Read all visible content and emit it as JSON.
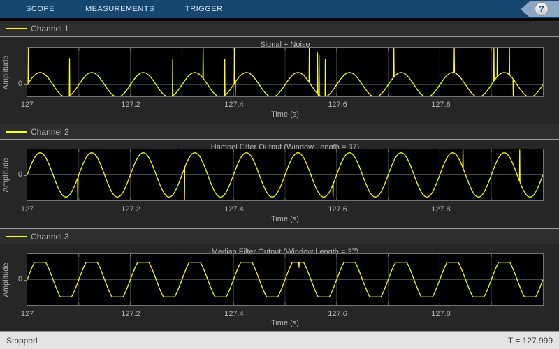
{
  "toolbar": {
    "tabs": [
      {
        "label": "SCOPE"
      },
      {
        "label": "MEASUREMENTS"
      },
      {
        "label": "TRIGGER"
      }
    ],
    "help_label": "?"
  },
  "channels": [
    {
      "label": "Channel 1"
    },
    {
      "label": "Channel 2"
    },
    {
      "label": "Channel 3"
    }
  ],
  "status": {
    "state": "Stopped",
    "time_display": "T = 127.999"
  },
  "colors": {
    "signal": "#ffff00",
    "toolbar_bg": "#16476f",
    "plot_bg": "#000000",
    "grid_major": "#454545",
    "grid_minor": "#303030",
    "tick_notch": "#757575",
    "axis_text": "#b4b4b4"
  },
  "chart_data": [
    {
      "type": "line",
      "title": "Signal + Noise",
      "xlabel": "Time (s)",
      "ylabel": "Amplitude",
      "xlim": [
        127,
        128
      ],
      "ylim": [
        -0.95,
        3.0
      ],
      "xticks": [
        127,
        127.2,
        127.4,
        127.6,
        127.8
      ],
      "xtick_labels": [
        "127",
        "127.2",
        "127.4",
        "127.6",
        "127.8"
      ],
      "ytick_value": 0,
      "ytick_label": "0",
      "grid_interval": 0.1,
      "signal": {
        "kind": "sine",
        "frequency_hz": 10,
        "amplitude": 1,
        "clip_level": null
      },
      "spikes": [
        [
          127.002,
          3.8
        ],
        [
          127.082,
          2.15
        ],
        [
          127.282,
          2.05
        ],
        [
          127.341,
          4.0
        ],
        [
          127.383,
          2.1
        ],
        [
          127.402,
          4.2
        ],
        [
          127.4035,
          -1.2
        ],
        [
          127.547,
          4.0
        ],
        [
          127.563,
          2.6
        ],
        [
          127.5645,
          -1.3
        ],
        [
          127.566,
          2.4
        ],
        [
          127.578,
          2.1
        ],
        [
          127.711,
          4.2
        ],
        [
          127.828,
          4.0
        ],
        [
          127.905,
          4.1
        ],
        [
          127.9115,
          3.9
        ],
        [
          127.935,
          4.3
        ],
        [
          127.9425,
          -1.5
        ]
      ]
    },
    {
      "type": "line",
      "title": "Hampel Filter Output (Window Length = 37)",
      "xlabel": "Time (s)",
      "ylabel": "Amplitude",
      "xlim": [
        127,
        128
      ],
      "ylim": [
        -1.15,
        1.15
      ],
      "xticks": [
        127,
        127.2,
        127.4,
        127.6,
        127.8
      ],
      "xtick_labels": [
        "127",
        "127.2",
        "127.4",
        "127.6",
        "127.8"
      ],
      "ytick_value": 0,
      "ytick_label": "0",
      "grid_interval": 0.1,
      "signal": {
        "kind": "sine",
        "frequency_hz": 10,
        "amplitude": 1,
        "clip_level": null
      },
      "spikes": [
        [
          127.098,
          -1.13
        ],
        [
          127.305,
          -1.1
        ],
        [
          127.593,
          -1.0
        ],
        [
          127.845,
          1.13
        ],
        [
          127.955,
          1.12
        ]
      ]
    },
    {
      "type": "line",
      "title": "Median Filter Output (Window Length = 37)",
      "xlabel": "Time (s)",
      "ylabel": "Amplitude",
      "xlim": [
        127,
        128
      ],
      "ylim": [
        -1.15,
        1.15
      ],
      "xticks": [
        127,
        127.2,
        127.4,
        127.6,
        127.8
      ],
      "xtick_labels": [
        "127",
        "127.2",
        "127.4",
        "127.6",
        "127.8"
      ],
      "ytick_value": 0,
      "ytick_label": "0",
      "grid_interval": 0.1,
      "signal": {
        "kind": "sine",
        "frequency_hz": 10,
        "amplitude": 1,
        "clip_level": 0.78
      },
      "spikes": [
        [
          127.527,
          0.55
        ]
      ]
    }
  ]
}
